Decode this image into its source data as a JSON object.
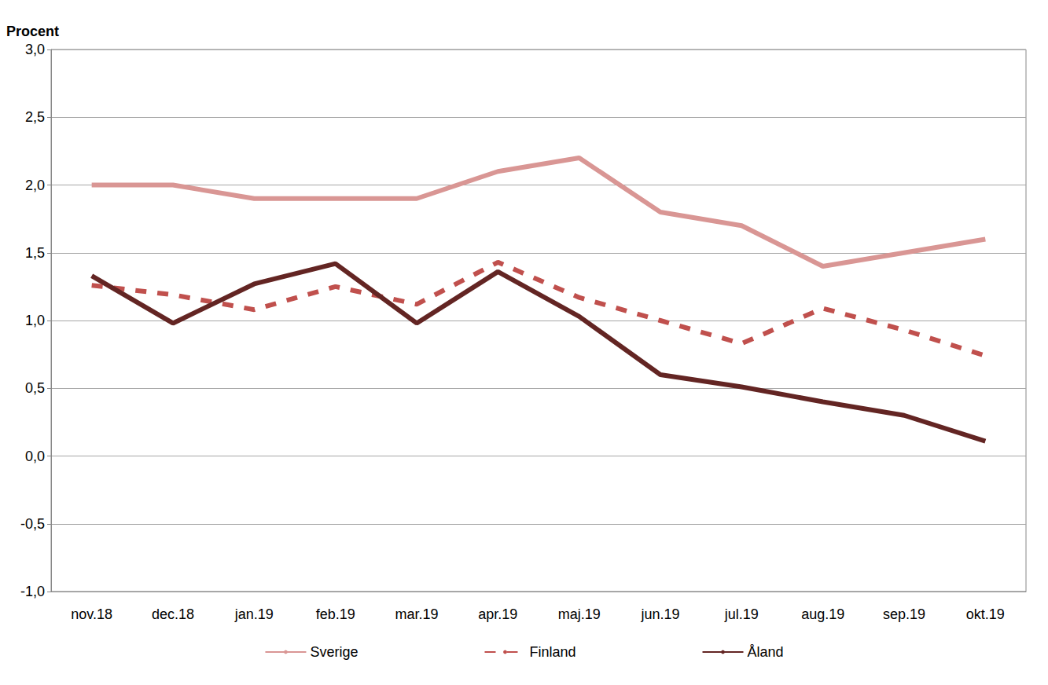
{
  "chart_data": {
    "type": "line",
    "y_label": "Procent",
    "categories": [
      "nov.18",
      "dec.18",
      "jan.19",
      "feb.19",
      "mar.19",
      "apr.19",
      "maj.19",
      "jun.19",
      "jul.19",
      "aug.19",
      "sep.19",
      "okt.19"
    ],
    "series": [
      {
        "name": "Sverige",
        "color": "#d99694",
        "line_style": "solid",
        "marker": "none",
        "values": [
          2.0,
          2.0,
          1.9,
          1.9,
          1.9,
          2.1,
          2.2,
          1.8,
          1.7,
          1.4,
          1.5,
          1.6
        ]
      },
      {
        "name": "Finland",
        "color": "#c0504d",
        "line_style": "dashed",
        "marker": "none",
        "values": [
          1.26,
          1.19,
          1.08,
          1.25,
          1.12,
          1.43,
          1.17,
          1.0,
          0.83,
          1.09,
          0.93,
          0.74
        ]
      },
      {
        "name": "Åland",
        "color": "#632523",
        "line_style": "solid",
        "marker": "none",
        "values": [
          1.33,
          0.98,
          1.27,
          1.42,
          0.98,
          1.36,
          1.03,
          0.6,
          0.51,
          0.4,
          0.3,
          0.11
        ]
      }
    ],
    "ylim": [
      -1.0,
      3.0
    ],
    "yticks": [
      {
        "value": -1.0,
        "label": "-1,0"
      },
      {
        "value": -0.5,
        "label": "-0,5"
      },
      {
        "value": 0.0,
        "label": "0,0"
      },
      {
        "value": 0.5,
        "label": "0,5"
      },
      {
        "value": 1.0,
        "label": "1,0"
      },
      {
        "value": 1.5,
        "label": "1,5"
      },
      {
        "value": 2.0,
        "label": "2,0"
      },
      {
        "value": 2.5,
        "label": "2,5"
      },
      {
        "value": 3.0,
        "label": "3,0"
      }
    ],
    "grid": true,
    "legend": "bottom"
  }
}
